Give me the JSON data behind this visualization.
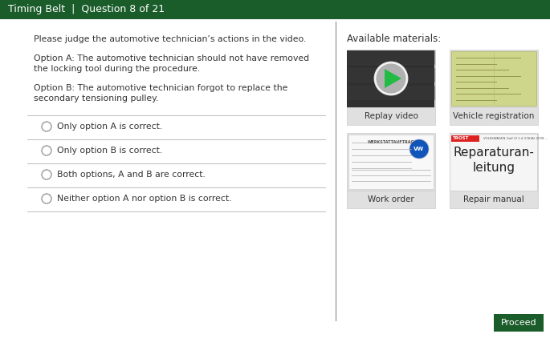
{
  "title_bar_text": "Timing Belt  |  Question 8 of 21",
  "title_bar_color": "#1a5c2a",
  "title_text_color": "#ffffff",
  "bg_color": "#ffffff",
  "question_intro": "Please judge the automotive technician’s actions in the video.",
  "option_a_text": "Option A: The automotive technician should not have removed\nthe locking tool during the procedure.",
  "option_b_text": "Option B: The automotive technician forgot to replace the\nsecondary tensioning pulley.",
  "choices": [
    "Only option A is correct.",
    "Only option B is correct.",
    "Both options, A and B are correct.",
    "Neither option A nor option B is correct."
  ],
  "avail_materials_label": "Available materials:",
  "materials": [
    {
      "label": "Replay video",
      "col": 0,
      "row": 0
    },
    {
      "label": "Vehicle registration",
      "col": 1,
      "row": 0
    },
    {
      "label": "Work order",
      "col": 0,
      "row": 1
    },
    {
      "label": "Repair manual",
      "col": 1,
      "row": 1
    }
  ],
  "proceed_btn_color": "#1a5c2a",
  "proceed_btn_text": "Proceed",
  "proceed_text_color": "#ffffff",
  "separator_color": "#bbbbbb",
  "radio_color": "#999999",
  "text_color": "#333333",
  "card_img_bg": "#e0e0e0",
  "card_label_bg": "#e0e0e0",
  "card_border": "#cccccc",
  "divider_color": "#888888",
  "title_fontsize": 9,
  "body_fontsize": 7.8,
  "choice_fontsize": 7.8,
  "avail_fontsize": 8.5,
  "card_label_fontsize": 7.5
}
